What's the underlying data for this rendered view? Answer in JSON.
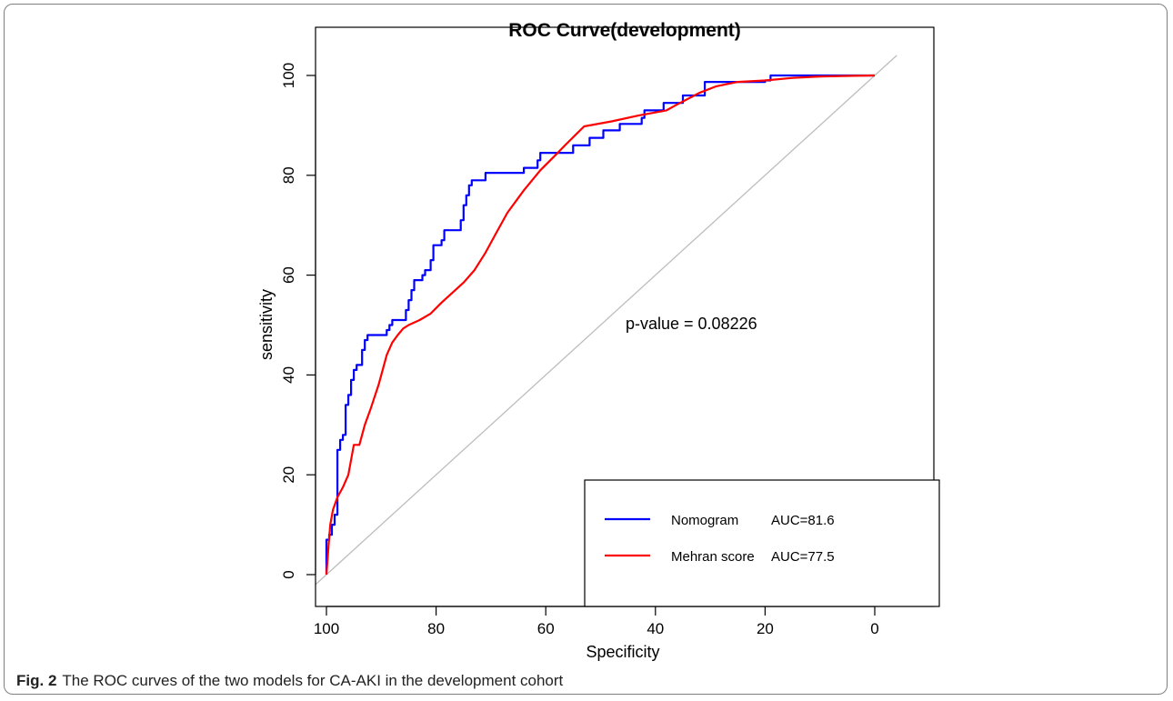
{
  "caption": {
    "label": "Fig. 2",
    "text": "The ROC curves of the two models for CA-AKI in the development cohort"
  },
  "chart_data": {
    "type": "line",
    "title": "ROC Curve(development)",
    "xlabel": "Specificity",
    "ylabel": "sensitivity",
    "xlim": [
      100,
      0
    ],
    "ylim": [
      0,
      100
    ],
    "x_reversed": true,
    "x_ticks": [
      100,
      80,
      60,
      40,
      20,
      0
    ],
    "y_ticks": [
      0,
      20,
      40,
      60,
      80,
      100
    ],
    "annotation": "p-value = 0.08226",
    "reference_line": [
      [
        104,
        -4
      ],
      [
        -4,
        104
      ]
    ],
    "legend_position": "bottom-right",
    "series": [
      {
        "name": "Nomogram",
        "auc_label": "AUC=81.6",
        "color": "#0000ff",
        "points": [
          [
            100,
            0
          ],
          [
            100,
            7
          ],
          [
            99.5,
            7
          ],
          [
            99.5,
            8
          ],
          [
            99,
            8
          ],
          [
            99,
            10
          ],
          [
            98.5,
            10
          ],
          [
            98.5,
            12
          ],
          [
            98,
            12
          ],
          [
            98,
            25
          ],
          [
            97.5,
            25
          ],
          [
            97.5,
            27
          ],
          [
            97,
            27
          ],
          [
            97,
            28
          ],
          [
            96.5,
            28
          ],
          [
            96.5,
            34
          ],
          [
            96,
            34
          ],
          [
            96,
            36
          ],
          [
            95.5,
            36
          ],
          [
            95.5,
            39
          ],
          [
            95,
            39
          ],
          [
            95,
            41
          ],
          [
            94.5,
            41
          ],
          [
            94.5,
            42
          ],
          [
            93.5,
            42
          ],
          [
            93.5,
            45
          ],
          [
            93,
            45
          ],
          [
            93,
            47
          ],
          [
            92.5,
            47
          ],
          [
            92.5,
            48
          ],
          [
            89,
            48
          ],
          [
            89,
            49
          ],
          [
            88.5,
            49
          ],
          [
            88.5,
            50
          ],
          [
            88,
            50
          ],
          [
            88,
            51
          ],
          [
            85.5,
            51
          ],
          [
            85.5,
            53
          ],
          [
            85,
            53
          ],
          [
            85,
            55
          ],
          [
            84.5,
            55
          ],
          [
            84.5,
            57
          ],
          [
            84,
            57
          ],
          [
            84,
            59
          ],
          [
            82.5,
            59
          ],
          [
            82.5,
            60
          ],
          [
            82,
            60
          ],
          [
            82,
            61
          ],
          [
            81,
            61
          ],
          [
            81,
            63
          ],
          [
            80.5,
            63
          ],
          [
            80.5,
            66
          ],
          [
            79,
            66
          ],
          [
            79,
            67
          ],
          [
            78.5,
            67
          ],
          [
            78.5,
            69
          ],
          [
            75.5,
            69
          ],
          [
            75.5,
            71
          ],
          [
            75,
            71
          ],
          [
            75,
            74
          ],
          [
            74.5,
            74
          ],
          [
            74.5,
            76
          ],
          [
            74,
            76
          ],
          [
            74,
            78
          ],
          [
            73.5,
            78
          ],
          [
            73.5,
            79
          ],
          [
            71,
            79
          ],
          [
            71,
            80.5
          ],
          [
            64,
            80.5
          ],
          [
            64,
            81.5
          ],
          [
            61.5,
            81.5
          ],
          [
            61.5,
            83
          ],
          [
            61,
            83
          ],
          [
            61,
            84.5
          ],
          [
            55,
            84.5
          ],
          [
            55,
            86
          ],
          [
            52,
            86
          ],
          [
            52,
            87.5
          ],
          [
            49.5,
            87.5
          ],
          [
            49.5,
            89
          ],
          [
            46.5,
            89
          ],
          [
            46.5,
            90.3
          ],
          [
            42.5,
            90.3
          ],
          [
            42.5,
            91.5
          ],
          [
            42,
            91.5
          ],
          [
            42,
            93
          ],
          [
            38.5,
            93
          ],
          [
            38.5,
            94.5
          ],
          [
            35,
            94.5
          ],
          [
            35,
            96
          ],
          [
            31,
            96
          ],
          [
            31,
            98.7
          ],
          [
            20,
            98.7
          ],
          [
            20,
            99
          ],
          [
            19,
            99
          ],
          [
            19,
            100
          ],
          [
            0,
            100
          ]
        ]
      },
      {
        "name": "Mehran score",
        "auc_label": "AUC=77.5",
        "color": "#ff0000",
        "points": [
          [
            100,
            0
          ],
          [
            99.6,
            6
          ],
          [
            99.3,
            10
          ],
          [
            98.8,
            13
          ],
          [
            98,
            15.5
          ],
          [
            97,
            17.5
          ],
          [
            96,
            20
          ],
          [
            95,
            26
          ],
          [
            94,
            26
          ],
          [
            93,
            30
          ],
          [
            92,
            33
          ],
          [
            90.5,
            38
          ],
          [
            89,
            44
          ],
          [
            88,
            46.5
          ],
          [
            87,
            48
          ],
          [
            86,
            49.3
          ],
          [
            85,
            50
          ],
          [
            83,
            51
          ],
          [
            81,
            52.3
          ],
          [
            79,
            54.5
          ],
          [
            77,
            56.5
          ],
          [
            75,
            58.5
          ],
          [
            73,
            61
          ],
          [
            71,
            64.5
          ],
          [
            69,
            68.5
          ],
          [
            67,
            72.5
          ],
          [
            64,
            77
          ],
          [
            61,
            81
          ],
          [
            58,
            84.3
          ],
          [
            56.5,
            86
          ],
          [
            53,
            89.8
          ],
          [
            48,
            90.8
          ],
          [
            43,
            92
          ],
          [
            38,
            93
          ],
          [
            36,
            94.2
          ],
          [
            32,
            96.5
          ],
          [
            29,
            97.8
          ],
          [
            25,
            98.7
          ],
          [
            20,
            99
          ],
          [
            15,
            99.5
          ],
          [
            10,
            99.8
          ],
          [
            5,
            99.9
          ],
          [
            0,
            100
          ]
        ]
      }
    ]
  }
}
